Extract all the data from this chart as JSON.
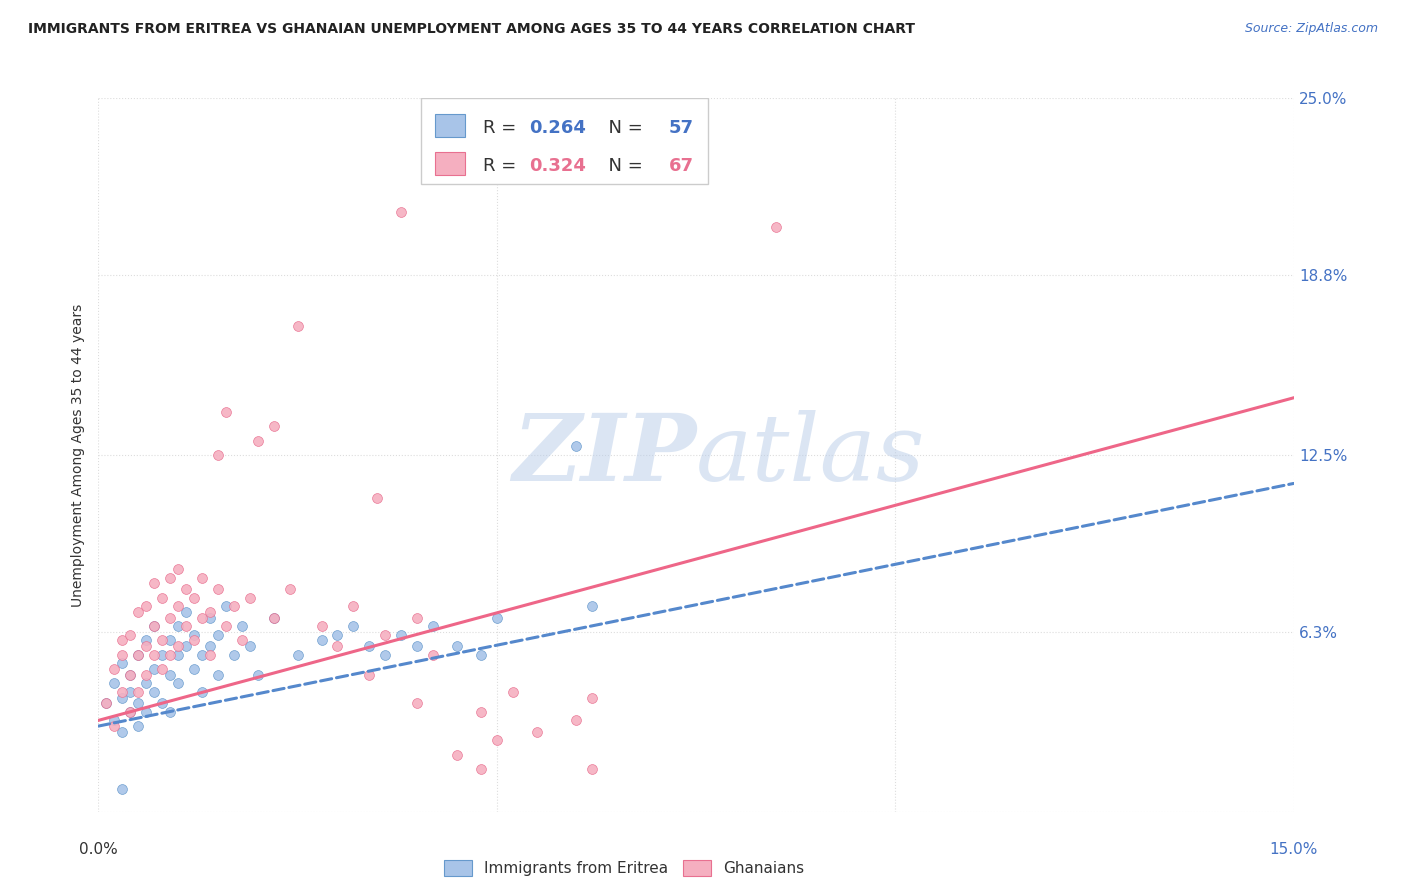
{
  "title": "IMMIGRANTS FROM ERITREA VS GHANAIAN UNEMPLOYMENT AMONG AGES 35 TO 44 YEARS CORRELATION CHART",
  "source": "Source: ZipAtlas.com",
  "ylabel": "Unemployment Among Ages 35 to 44 years",
  "xlim": [
    0.0,
    0.15
  ],
  "ylim": [
    0.0,
    0.25
  ],
  "y_ticks_right": [
    0.0,
    0.063,
    0.125,
    0.188,
    0.25
  ],
  "y_tick_labels_right": [
    "",
    "6.3%",
    "12.5%",
    "18.8%",
    "25.0%"
  ],
  "x_ticks": [
    0.0,
    0.05,
    0.1,
    0.15
  ],
  "watermark_zip": "ZIP",
  "watermark_atlas": "atlas",
  "legend_blue_R": "0.264",
  "legend_blue_N": "57",
  "legend_pink_R": "0.324",
  "legend_pink_N": "67",
  "blue_color": "#a8c4e8",
  "pink_color": "#f5afc0",
  "blue_edge_color": "#6699cc",
  "pink_edge_color": "#e87090",
  "blue_line_color": "#5588cc",
  "pink_line_color": "#ee6688",
  "blue_trend_x": [
    0.0,
    0.15
  ],
  "blue_trend_y": [
    0.03,
    0.115
  ],
  "pink_trend_x": [
    0.0,
    0.15
  ],
  "pink_trend_y": [
    0.032,
    0.145
  ],
  "grid_color": "#dddddd",
  "background_color": "#ffffff",
  "blue_scatter": [
    [
      0.001,
      0.038
    ],
    [
      0.002,
      0.032
    ],
    [
      0.002,
      0.045
    ],
    [
      0.003,
      0.04
    ],
    [
      0.003,
      0.028
    ],
    [
      0.003,
      0.052
    ],
    [
      0.004,
      0.035
    ],
    [
      0.004,
      0.048
    ],
    [
      0.004,
      0.042
    ],
    [
      0.005,
      0.055
    ],
    [
      0.005,
      0.038
    ],
    [
      0.005,
      0.03
    ],
    [
      0.006,
      0.06
    ],
    [
      0.006,
      0.045
    ],
    [
      0.006,
      0.035
    ],
    [
      0.007,
      0.05
    ],
    [
      0.007,
      0.042
    ],
    [
      0.007,
      0.065
    ],
    [
      0.008,
      0.055
    ],
    [
      0.008,
      0.038
    ],
    [
      0.009,
      0.06
    ],
    [
      0.009,
      0.048
    ],
    [
      0.009,
      0.035
    ],
    [
      0.01,
      0.065
    ],
    [
      0.01,
      0.055
    ],
    [
      0.01,
      0.045
    ],
    [
      0.011,
      0.058
    ],
    [
      0.011,
      0.07
    ],
    [
      0.012,
      0.05
    ],
    [
      0.012,
      0.062
    ],
    [
      0.013,
      0.055
    ],
    [
      0.013,
      0.042
    ],
    [
      0.014,
      0.068
    ],
    [
      0.014,
      0.058
    ],
    [
      0.015,
      0.048
    ],
    [
      0.015,
      0.062
    ],
    [
      0.016,
      0.072
    ],
    [
      0.017,
      0.055
    ],
    [
      0.018,
      0.065
    ],
    [
      0.019,
      0.058
    ],
    [
      0.02,
      0.048
    ],
    [
      0.022,
      0.068
    ],
    [
      0.025,
      0.055
    ],
    [
      0.028,
      0.06
    ],
    [
      0.03,
      0.062
    ],
    [
      0.032,
      0.065
    ],
    [
      0.034,
      0.058
    ],
    [
      0.036,
      0.055
    ],
    [
      0.038,
      0.062
    ],
    [
      0.04,
      0.058
    ],
    [
      0.042,
      0.065
    ],
    [
      0.045,
      0.058
    ],
    [
      0.048,
      0.055
    ],
    [
      0.05,
      0.068
    ],
    [
      0.06,
      0.128
    ],
    [
      0.003,
      0.008
    ],
    [
      0.062,
      0.072
    ]
  ],
  "pink_scatter": [
    [
      0.001,
      0.038
    ],
    [
      0.002,
      0.05
    ],
    [
      0.002,
      0.03
    ],
    [
      0.003,
      0.055
    ],
    [
      0.003,
      0.042
    ],
    [
      0.003,
      0.06
    ],
    [
      0.004,
      0.048
    ],
    [
      0.004,
      0.062
    ],
    [
      0.004,
      0.035
    ],
    [
      0.005,
      0.055
    ],
    [
      0.005,
      0.07
    ],
    [
      0.005,
      0.042
    ],
    [
      0.006,
      0.058
    ],
    [
      0.006,
      0.072
    ],
    [
      0.006,
      0.048
    ],
    [
      0.007,
      0.065
    ],
    [
      0.007,
      0.055
    ],
    [
      0.007,
      0.08
    ],
    [
      0.008,
      0.06
    ],
    [
      0.008,
      0.075
    ],
    [
      0.008,
      0.05
    ],
    [
      0.009,
      0.068
    ],
    [
      0.009,
      0.082
    ],
    [
      0.009,
      0.055
    ],
    [
      0.01,
      0.072
    ],
    [
      0.01,
      0.058
    ],
    [
      0.01,
      0.085
    ],
    [
      0.011,
      0.065
    ],
    [
      0.011,
      0.078
    ],
    [
      0.012,
      0.06
    ],
    [
      0.012,
      0.075
    ],
    [
      0.013,
      0.068
    ],
    [
      0.013,
      0.082
    ],
    [
      0.014,
      0.07
    ],
    [
      0.014,
      0.055
    ],
    [
      0.015,
      0.078
    ],
    [
      0.015,
      0.125
    ],
    [
      0.016,
      0.065
    ],
    [
      0.016,
      0.14
    ],
    [
      0.017,
      0.072
    ],
    [
      0.018,
      0.06
    ],
    [
      0.019,
      0.075
    ],
    [
      0.02,
      0.13
    ],
    [
      0.022,
      0.068
    ],
    [
      0.022,
      0.135
    ],
    [
      0.024,
      0.078
    ],
    [
      0.025,
      0.17
    ],
    [
      0.028,
      0.065
    ],
    [
      0.03,
      0.058
    ],
    [
      0.032,
      0.072
    ],
    [
      0.034,
      0.048
    ],
    [
      0.036,
      0.062
    ],
    [
      0.038,
      0.21
    ],
    [
      0.04,
      0.038
    ],
    [
      0.042,
      0.055
    ],
    [
      0.045,
      0.02
    ],
    [
      0.048,
      0.035
    ],
    [
      0.05,
      0.025
    ],
    [
      0.052,
      0.042
    ],
    [
      0.06,
      0.032
    ],
    [
      0.04,
      0.068
    ],
    [
      0.062,
      0.04
    ],
    [
      0.085,
      0.205
    ],
    [
      0.035,
      0.11
    ],
    [
      0.048,
      0.015
    ],
    [
      0.055,
      0.028
    ],
    [
      0.062,
      0.015
    ]
  ]
}
